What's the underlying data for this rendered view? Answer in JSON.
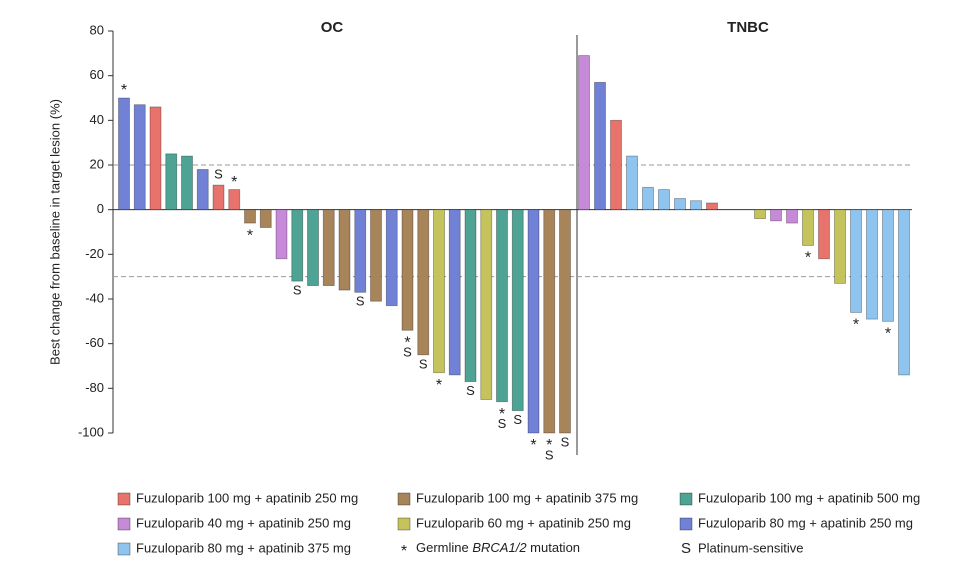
{
  "chart_data": {
    "type": "bar",
    "y_label": "Best change from baseline in target lesion (%)",
    "ylim": [
      -100,
      80
    ],
    "yticks": [
      -100,
      -80,
      -60,
      -40,
      -20,
      0,
      20,
      40,
      60,
      80
    ],
    "reference_lines": [
      20,
      -30
    ],
    "series": [
      {
        "name": "Fuzuloparib 100 mg + apatinib 250 mg",
        "color": "#e8726c"
      },
      {
        "name": "Fuzuloparib 100 mg + apatinib 375 mg",
        "color": "#a8845a"
      },
      {
        "name": "Fuzuloparib 100 mg + apatinib 500 mg",
        "color": "#4fa394"
      },
      {
        "name": "Fuzuloparib 40 mg + apatinib 250 mg",
        "color": "#c78ad9"
      },
      {
        "name": "Fuzuloparib 60 mg + apatinib 250 mg",
        "color": "#c5c45c"
      },
      {
        "name": "Fuzuloparib 80 mg + apatinib 250 mg",
        "color": "#7182d6"
      },
      {
        "name": "Fuzuloparib 80 mg + apatinib 375 mg",
        "color": "#8fc4ee"
      }
    ],
    "markers": {
      "asterisk": {
        "symbol": "*",
        "label": [
          "Germline ",
          "BRCA1/2",
          " mutation"
        ]
      },
      "platinum": {
        "symbol": "S",
        "label": "Platinum-sensitive"
      }
    },
    "panels": [
      {
        "title": "OC",
        "values": [
          50,
          47,
          46,
          25,
          24,
          18,
          11,
          9,
          -6,
          -8,
          -22,
          -32,
          -34,
          -34,
          -36,
          -37,
          -41,
          -43,
          -54,
          -65,
          -73,
          -74,
          -77,
          -85,
          -86,
          -90,
          -100,
          -100,
          -100
        ],
        "groups": [
          5,
          5,
          0,
          2,
          2,
          5,
          0,
          0,
          1,
          1,
          3,
          2,
          2,
          1,
          1,
          5,
          1,
          5,
          1,
          1,
          4,
          5,
          2,
          4,
          2,
          2,
          5,
          1,
          1
        ],
        "annotations": [
          [
            "*"
          ],
          [],
          [],
          [],
          [],
          [],
          [
            "S"
          ],
          [
            "*"
          ],
          [
            "*"
          ],
          [],
          [],
          [
            "S"
          ],
          [],
          [],
          [],
          [
            "S"
          ],
          [],
          [],
          [
            "*",
            "S"
          ],
          [
            "S"
          ],
          [
            "*"
          ],
          [],
          [
            "S"
          ],
          [],
          [
            "*",
            "S"
          ],
          [
            "S"
          ],
          [
            "*"
          ],
          [
            "*",
            "S"
          ],
          [
            "S"
          ]
        ]
      },
      {
        "title": "TNBC",
        "values": [
          69,
          57,
          40,
          24,
          10,
          9,
          5,
          4,
          3,
          0,
          0,
          -4,
          -5,
          -6,
          -16,
          -22,
          -33,
          -46,
          -49,
          -50,
          -74
        ],
        "groups": [
          3,
          5,
          0,
          6,
          6,
          6,
          6,
          6,
          0,
          null,
          null,
          4,
          3,
          3,
          4,
          0,
          4,
          6,
          6,
          6,
          6
        ],
        "annotations": [
          [],
          [],
          [],
          [],
          [],
          [],
          [],
          [],
          [],
          [],
          [],
          [],
          [],
          [],
          [
            "*"
          ],
          [],
          [],
          [
            "*"
          ],
          [],
          [
            "*"
          ],
          []
        ]
      }
    ]
  }
}
